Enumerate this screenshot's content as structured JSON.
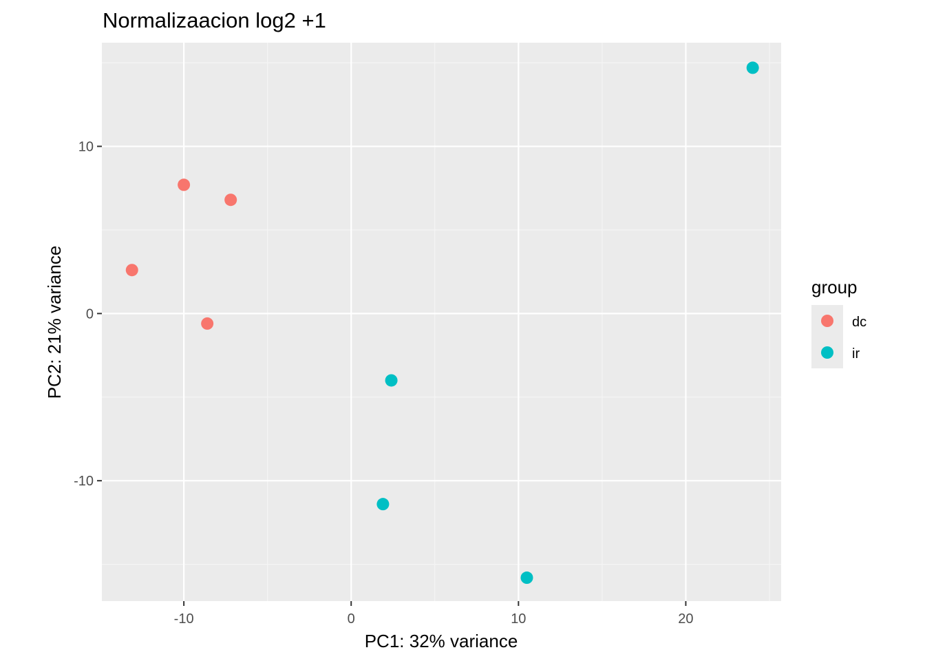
{
  "chart_data": {
    "type": "scatter",
    "title": "Normalizaacion log2 +1",
    "xlabel": "PC1: 32% variance",
    "ylabel": "PC2: 21% variance",
    "xlim": [
      -14.9,
      25.7
    ],
    "ylim": [
      -17.2,
      16.2
    ],
    "x_ticks": [
      -10,
      0,
      10,
      20
    ],
    "y_ticks": [
      -10,
      0,
      10
    ],
    "x_tick_labels": [
      "-10",
      "0",
      "10",
      "20"
    ],
    "y_tick_labels": [
      "-10",
      "0",
      "10"
    ],
    "grid": true,
    "legend": {
      "title": "group",
      "placement": "right"
    },
    "series": [
      {
        "name": "dc",
        "color": "#F8766D",
        "points": [
          {
            "x": -10.0,
            "y": 7.7
          },
          {
            "x": -7.2,
            "y": 6.8
          },
          {
            "x": -13.1,
            "y": 2.6
          },
          {
            "x": -8.6,
            "y": -0.6
          }
        ]
      },
      {
        "name": "ir",
        "color": "#00BFC4",
        "points": [
          {
            "x": 24.0,
            "y": 14.7
          },
          {
            "x": 2.4,
            "y": -4.0
          },
          {
            "x": 1.9,
            "y": -11.4
          },
          {
            "x": 10.5,
            "y": -15.8
          }
        ]
      }
    ]
  },
  "colors": {
    "panel_background": "#EBEBEB",
    "grid_major": "#FFFFFF",
    "grid_minor": "#F5F5F5"
  }
}
